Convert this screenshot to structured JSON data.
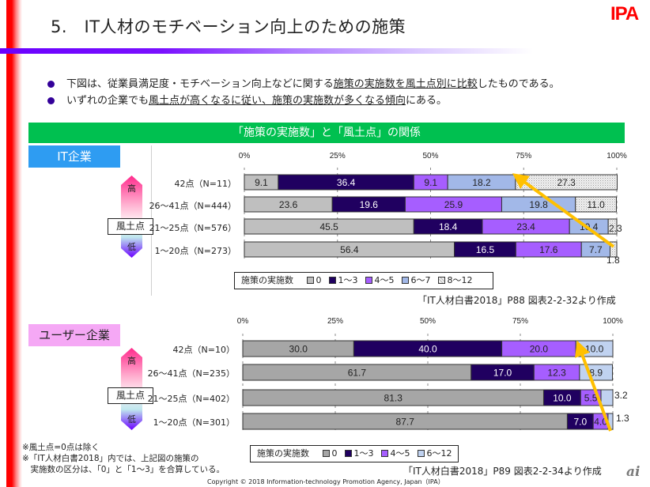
{
  "header": {
    "title": "5.　IT人材のモチベーション向上のための施策",
    "logo": "IPA"
  },
  "bullets": [
    {
      "pre": "下図は、従業員満足度・モチベーション向上などに関する",
      "u": "施策の実施数を風土点別に比較",
      "post": "したものである。"
    },
    {
      "pre": "いずれの企業でも",
      "u": "風土点が高くなるに従い、施策の実施数が多くなる傾向",
      "post": "にある。"
    }
  ],
  "banner": "「施策の実施数」と「風土点」の関係",
  "axis_label": {
    "high": "高",
    "low": "低",
    "box": "風土点"
  },
  "legend_title": "施策の実施数",
  "chart_data": [
    {
      "type": "bar",
      "stacked": "percent",
      "orientation": "horizontal",
      "title": "IT企業",
      "xlabel": "",
      "ylabel": "風土点",
      "xlim": [
        0,
        100
      ],
      "x_ticks": [
        "0%",
        "25%",
        "50%",
        "75%",
        "100%"
      ],
      "categories": [
        "42点（N=11）",
        "26～41点（N=444）",
        "21～25点（N=576）",
        "1～20点（N=273）"
      ],
      "series": [
        {
          "name": "0",
          "color": "#bfbfbf",
          "values": [
            9.1,
            23.6,
            45.5,
            56.4
          ]
        },
        {
          "name": "1～3",
          "color": "#200060",
          "values": [
            36.4,
            19.6,
            18.4,
            16.5
          ]
        },
        {
          "name": "4～5",
          "color": "#a65eff",
          "values": [
            9.1,
            25.9,
            23.4,
            17.6
          ]
        },
        {
          "name": "6～7",
          "color": "#a2b8e8",
          "values": [
            18.2,
            19.8,
            10.4,
            7.7
          ]
        },
        {
          "name": "8～12",
          "color": "#ececec",
          "pattern": "dotted",
          "values": [
            27.3,
            11.0,
            2.3,
            1.8
          ]
        }
      ],
      "annotation": "yellow arrow from 1～20点 row (100%) toward 42点 row (~75%)",
      "source": "「IT人材白書2018」P88 図表2-2-32より作成"
    },
    {
      "type": "bar",
      "stacked": "percent",
      "orientation": "horizontal",
      "title": "ユーザー企業",
      "xlabel": "",
      "ylabel": "風土点",
      "xlim": [
        0,
        100
      ],
      "x_ticks": [
        "0%",
        "25%",
        "50%",
        "75%",
        "100%"
      ],
      "categories": [
        "42点（N=10）",
        "26～41点（N=235）",
        "21～25点（N=402）",
        "1～20点（N=301）"
      ],
      "series": [
        {
          "name": "0",
          "color": "#a6a6a6",
          "values": [
            30.0,
            61.7,
            81.3,
            87.7
          ]
        },
        {
          "name": "1～3",
          "color": "#200060",
          "values": [
            40.0,
            17.0,
            10.0,
            7.0
          ]
        },
        {
          "name": "4～5",
          "color": "#a65eff",
          "values": [
            20.0,
            12.3,
            5.5,
            4.0
          ]
        },
        {
          "name": "6～12",
          "color": "#c0d2f0",
          "values": [
            10.0,
            8.9,
            3.2,
            1.3
          ]
        }
      ],
      "annotation": "yellow arrow from 1～20点 row (100%) toward 42点 row (~90%)",
      "source": "「IT人材白書2018」P89 図表2-2-34より作成"
    }
  ],
  "notes": [
    "※風土点=0点は除く",
    "※「IT人材白書2018」内では、上記図の施策の",
    "　実施数の区分は、「0」と「1～3」を合算している。"
  ],
  "copyright": "Copyright © 2018 Information-technology Promotion Agency, Japan（IPA）",
  "footer_logo": "ai"
}
